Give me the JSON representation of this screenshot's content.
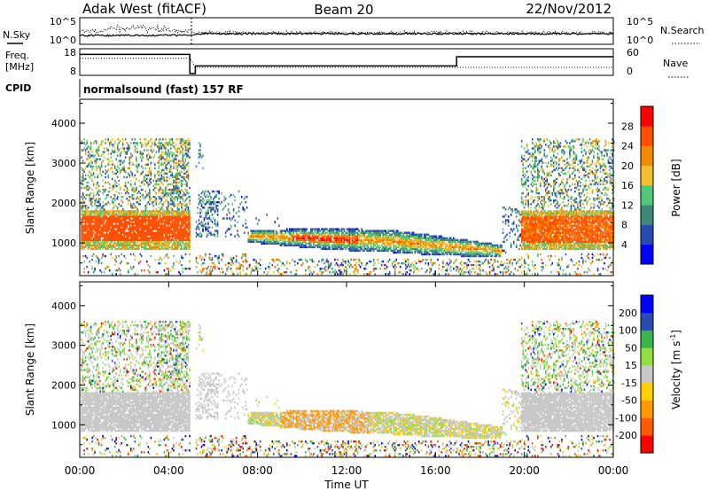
{
  "header": {
    "station": "Adak West (fitACF)",
    "beam": "Beam 20",
    "date": "22/Nov/2012"
  },
  "labels": {
    "n_sky": "N.Sky",
    "n_search": "N.Search",
    "freq_line1": "Freq.",
    "freq_line2": "[MHz]",
    "cpid": "CPID",
    "nave": "Nave",
    "cpid_value": "normalsound (fast) 157 RF"
  },
  "colors": {
    "power_scale": [
      "#0000ff",
      "#2a4cb0",
      "#3c8a78",
      "#50c878",
      "#f0c030",
      "#f08c00",
      "#ff5000",
      "#ff0000"
    ],
    "velocity_scale": [
      "#ff0000",
      "#ff5a00",
      "#ff9a00",
      "#ffd000",
      "#c8c8c8",
      "#90e040",
      "#3cb44a",
      "#2a4cb0",
      "#0000ff"
    ],
    "ground_scatter": "#c8c8c8"
  },
  "chart_data": [
    {
      "type": "line",
      "name": "noise-panel",
      "left_axis": {
        "ticks": [
          "10^5",
          "10^0"
        ]
      },
      "right_axis": {
        "ticks": [
          "10^5",
          "10^0"
        ]
      },
      "x_range": [
        "00:00",
        "24:00"
      ]
    },
    {
      "type": "line",
      "name": "frequency-panel",
      "left_axis": {
        "ticks": [
          "18",
          "8"
        ],
        "ylim": [
          8,
          18
        ]
      },
      "right_axis": {
        "ticks": [
          "60",
          "0"
        ],
        "ylim": [
          0,
          60
        ]
      },
      "freq_series": {
        "x": [
          0,
          4.95,
          4.95,
          5.2,
          5.2,
          16.95,
          16.95,
          24
        ],
        "y": [
          16.3,
          16.3,
          8,
          8,
          11.3,
          11.3,
          15.3,
          15.3
        ]
      },
      "nave_series": {
        "x": [
          0,
          4.95,
          5.2,
          24
        ],
        "y": [
          40,
          40,
          16,
          16
        ]
      }
    },
    {
      "type": "heatmap",
      "name": "power-panel",
      "ylabel": "Slant Range [km]",
      "ylim": [
        180,
        4600
      ],
      "yticks": [
        1000,
        2000,
        3000,
        4000
      ],
      "colorbar": {
        "label": "Power [dB]",
        "ticks": [
          4,
          8,
          12,
          16,
          20,
          24,
          28
        ]
      }
    },
    {
      "type": "heatmap",
      "name": "velocity-panel",
      "ylabel": "Slant Range [km]",
      "xlabel": "Time UT",
      "ylim": [
        180,
        4600
      ],
      "yticks": [
        1000,
        2000,
        3000,
        4000
      ],
      "xticks": [
        "00:00",
        "04:00",
        "08:00",
        "12:00",
        "16:00",
        "20:00",
        "00:00"
      ],
      "colorbar": {
        "label": "Velocity [m s^-1]",
        "ticks": [
          200,
          100,
          50,
          15,
          -15,
          -50,
          -100,
          -200
        ]
      }
    }
  ]
}
